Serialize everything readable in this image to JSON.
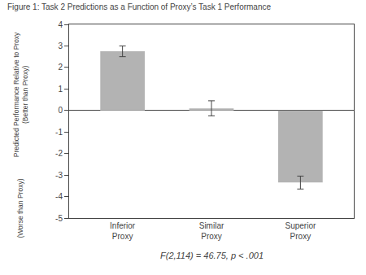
{
  "chart_data": {
    "type": "bar",
    "title": "Figure 1: Task 2 Predictions as a Function of Proxy’s Task 1 Performance",
    "ylabel": "Predicted Performance Relative to Proxy\n(Better than Proxy)",
    "annotations": [
      "(Worse than Proxy)",
      "F(2,114) = 46.75, p < .001"
    ],
    "categories": [
      "Inferior\nProxy",
      "Similar\nProxy",
      "Superior\nProxy"
    ],
    "values": [
      2.75,
      0.1,
      -3.35
    ],
    "errors": [
      0.25,
      0.35,
      0.3
    ],
    "color": "#b3b3b3",
    "ylim": [
      -5,
      4
    ],
    "yticks": [
      -5,
      -4,
      -3,
      -2,
      -1,
      0,
      1,
      2,
      3,
      4
    ],
    "grid": false
  }
}
